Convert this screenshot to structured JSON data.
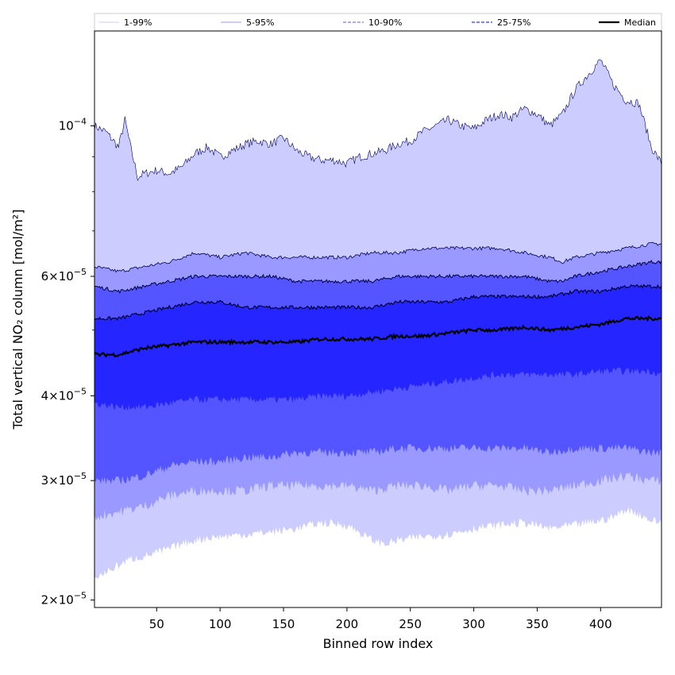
{
  "chart_data": {
    "type": "area",
    "xlabel": "Binned row index",
    "ylabel": "Total vertical NO₂ column [mol/m²]",
    "y_scale": "log",
    "xlim": [
      1,
      448
    ],
    "ylim": [
      1.95e-05,
      0.000138
    ],
    "x_ticks": [
      {
        "value": 50,
        "label": "50"
      },
      {
        "value": 100,
        "label": "100"
      },
      {
        "value": 150,
        "label": "150"
      },
      {
        "value": 200,
        "label": "200"
      },
      {
        "value": 250,
        "label": "250"
      },
      {
        "value": 300,
        "label": "300"
      },
      {
        "value": 350,
        "label": "350"
      },
      {
        "value": 400,
        "label": "400"
      }
    ],
    "y_major_ticks": [
      {
        "value": 2e-05,
        "mantissa": "2",
        "exponent": "−5"
      },
      {
        "value": 3e-05,
        "mantissa": "3",
        "exponent": "−5"
      },
      {
        "value": 4e-05,
        "mantissa": "4",
        "exponent": "−5"
      },
      {
        "value": 6e-05,
        "mantissa": "6",
        "exponent": "−5"
      },
      {
        "value": 0.0001,
        "mantissa": "",
        "exponent": "−4"
      }
    ],
    "y_minor_ticks": [
      5e-05,
      7e-05,
      8e-05,
      9e-05
    ],
    "band_colors": {
      "1-99%": "#ccccff",
      "5-95%": "#9999ff",
      "10-90%": "#5555ff",
      "25-75%": "#2525ff"
    },
    "median_color": "#000000",
    "legend": {
      "position": "top",
      "entries": [
        {
          "label": "1-99%",
          "style": "solid-thin",
          "color": "#ccccff"
        },
        {
          "label": "5-95%",
          "style": "solid-thin",
          "color": "#9999ff"
        },
        {
          "label": "10-90%",
          "style": "dashed",
          "color": "#7777ff"
        },
        {
          "label": "25-75%",
          "style": "dashed",
          "color": "#3333ff"
        },
        {
          "label": "Median",
          "style": "solid-thick",
          "color": "#000000"
        }
      ]
    },
    "series": [
      {
        "name": "p99",
        "x": [
          1,
          10,
          20,
          25,
          30,
          35,
          40,
          50,
          60,
          70,
          80,
          90,
          100,
          110,
          120,
          130,
          140,
          150,
          160,
          170,
          180,
          190,
          200,
          210,
          220,
          230,
          240,
          250,
          260,
          270,
          280,
          290,
          300,
          310,
          320,
          330,
          340,
          350,
          360,
          370,
          380,
          390,
          400,
          410,
          420,
          430,
          440,
          448
        ],
        "values": [
          0.0001,
          9.8e-05,
          9.3e-05,
          0.000102,
          9.2e-05,
          8.4e-05,
          8.5e-05,
          8.6e-05,
          8.5e-05,
          8.7e-05,
          9.1e-05,
          9.3e-05,
          9e-05,
          9.2e-05,
          9.4e-05,
          9.5e-05,
          9.4e-05,
          9.6e-05,
          9.2e-05,
          9e-05,
          8.9e-05,
          8.9e-05,
          8.8e-05,
          9e-05,
          9.1e-05,
          9.2e-05,
          9.4e-05,
          9.5e-05,
          9.8e-05,
          0.0001,
          0.000102,
          0.0001,
          9.9e-05,
          0.000102,
          0.000104,
          0.000103,
          0.000106,
          0.000104,
          0.0001,
          0.000104,
          0.000113,
          0.000119,
          0.000125,
          0.000115,
          0.000109,
          0.000108,
          9.3e-05,
          8.8e-05
        ]
      },
      {
        "name": "p95",
        "x": [
          1,
          20,
          40,
          60,
          80,
          100,
          120,
          140,
          160,
          180,
          200,
          220,
          240,
          260,
          280,
          300,
          320,
          340,
          360,
          370,
          380,
          400,
          420,
          440,
          448
        ],
        "values": [
          6.2e-05,
          6.1e-05,
          6.2e-05,
          6.3e-05,
          6.5e-05,
          6.4e-05,
          6.5e-05,
          6.4e-05,
          6.4e-05,
          6.4e-05,
          6.4e-05,
          6.5e-05,
          6.5e-05,
          6.6e-05,
          6.6e-05,
          6.6e-05,
          6.6e-05,
          6.5e-05,
          6.4e-05,
          6.3e-05,
          6.4e-05,
          6.5e-05,
          6.6e-05,
          6.7e-05,
          6.7e-05
        ]
      },
      {
        "name": "p90",
        "x": [
          1,
          20,
          40,
          60,
          80,
          100,
          120,
          140,
          160,
          180,
          200,
          220,
          240,
          260,
          280,
          300,
          320,
          340,
          360,
          370,
          380,
          400,
          420,
          440,
          448
        ],
        "values": [
          5.8e-05,
          5.7e-05,
          5.8e-05,
          5.9e-05,
          6e-05,
          6e-05,
          6e-05,
          6e-05,
          5.9e-05,
          5.9e-05,
          5.9e-05,
          5.9e-05,
          6e-05,
          6e-05,
          6e-05,
          6e-05,
          6e-05,
          6e-05,
          5.9e-05,
          5.9e-05,
          6e-05,
          6.1e-05,
          6.2e-05,
          6.3e-05,
          6.3e-05
        ]
      },
      {
        "name": "p75",
        "x": [
          1,
          20,
          40,
          60,
          80,
          100,
          120,
          140,
          160,
          180,
          200,
          220,
          240,
          260,
          280,
          300,
          320,
          340,
          360,
          380,
          400,
          420,
          440,
          448
        ],
        "values": [
          5.2e-05,
          5.2e-05,
          5.3e-05,
          5.4e-05,
          5.5e-05,
          5.5e-05,
          5.4e-05,
          5.4e-05,
          5.4e-05,
          5.4e-05,
          5.4e-05,
          5.4e-05,
          5.5e-05,
          5.5e-05,
          5.5e-05,
          5.6e-05,
          5.6e-05,
          5.6e-05,
          5.6e-05,
          5.7e-05,
          5.7e-05,
          5.8e-05,
          5.8e-05,
          5.8e-05
        ]
      },
      {
        "name": "median",
        "x": [
          1,
          20,
          40,
          60,
          80,
          100,
          120,
          140,
          160,
          180,
          200,
          220,
          240,
          260,
          280,
          300,
          320,
          340,
          360,
          380,
          400,
          420,
          440,
          448
        ],
        "values": [
          4.6e-05,
          4.6e-05,
          4.7e-05,
          4.75e-05,
          4.8e-05,
          4.8e-05,
          4.8e-05,
          4.8e-05,
          4.8e-05,
          4.85e-05,
          4.85e-05,
          4.85e-05,
          4.9e-05,
          4.9e-05,
          4.95e-05,
          5e-05,
          5e-05,
          5.05e-05,
          5e-05,
          5.05e-05,
          5.1e-05,
          5.2e-05,
          5.2e-05,
          5.2e-05
        ]
      },
      {
        "name": "p25",
        "x": [
          1,
          20,
          40,
          60,
          80,
          100,
          120,
          140,
          160,
          180,
          200,
          220,
          240,
          260,
          280,
          300,
          320,
          340,
          360,
          380,
          400,
          420,
          440,
          448
        ],
        "values": [
          3.9e-05,
          3.85e-05,
          3.85e-05,
          3.9e-05,
          3.95e-05,
          3.95e-05,
          3.95e-05,
          3.95e-05,
          3.95e-05,
          4e-05,
          4e-05,
          4.05e-05,
          4.1e-05,
          4.15e-05,
          4.2e-05,
          4.25e-05,
          4.3e-05,
          4.3e-05,
          4.3e-05,
          4.3e-05,
          4.35e-05,
          4.35e-05,
          4.35e-05,
          4.3e-05
        ]
      },
      {
        "name": "p10",
        "x": [
          1,
          20,
          40,
          60,
          80,
          100,
          120,
          140,
          160,
          180,
          200,
          220,
          240,
          260,
          280,
          300,
          320,
          340,
          360,
          380,
          400,
          420,
          440,
          448
        ],
        "values": [
          3e-05,
          3e-05,
          3.05e-05,
          3.15e-05,
          3.2e-05,
          3.2e-05,
          3.25e-05,
          3.25e-05,
          3.3e-05,
          3.3e-05,
          3.3e-05,
          3.3e-05,
          3.35e-05,
          3.35e-05,
          3.35e-05,
          3.35e-05,
          3.35e-05,
          3.35e-05,
          3.3e-05,
          3.35e-05,
          3.35e-05,
          3.35e-05,
          3.3e-05,
          3.3e-05
        ]
      },
      {
        "name": "p5",
        "x": [
          1,
          20,
          40,
          60,
          80,
          100,
          120,
          140,
          160,
          180,
          200,
          220,
          240,
          260,
          280,
          300,
          320,
          340,
          360,
          380,
          400,
          420,
          440,
          448
        ],
        "values": [
          2.65e-05,
          2.7e-05,
          2.75e-05,
          2.85e-05,
          2.9e-05,
          2.9e-05,
          2.9e-05,
          2.95e-05,
          2.95e-05,
          2.95e-05,
          2.95e-05,
          2.9e-05,
          2.95e-05,
          2.95e-05,
          2.9e-05,
          2.95e-05,
          2.95e-05,
          2.9e-05,
          2.9e-05,
          2.95e-05,
          3e-05,
          3.05e-05,
          3e-05,
          3e-05
        ]
      },
      {
        "name": "p1",
        "x": [
          1,
          10,
          20,
          30,
          40,
          50,
          60,
          70,
          80,
          90,
          100,
          120,
          140,
          160,
          180,
          200,
          220,
          230,
          240,
          260,
          280,
          300,
          320,
          340,
          360,
          380,
          400,
          410,
          420,
          430,
          440,
          448
        ],
        "values": [
          2.15e-05,
          2.2e-05,
          2.25e-05,
          2.3e-05,
          2.32e-05,
          2.35e-05,
          2.38e-05,
          2.42e-05,
          2.45e-05,
          2.47e-05,
          2.48e-05,
          2.5e-05,
          2.52e-05,
          2.55e-05,
          2.6e-05,
          2.58e-05,
          2.45e-05,
          2.42e-05,
          2.45e-05,
          2.48e-05,
          2.5e-05,
          2.55e-05,
          2.58e-05,
          2.6e-05,
          2.55e-05,
          2.58e-05,
          2.62e-05,
          2.65e-05,
          2.72e-05,
          2.68e-05,
          2.62e-05,
          2.6e-05
        ]
      }
    ]
  }
}
